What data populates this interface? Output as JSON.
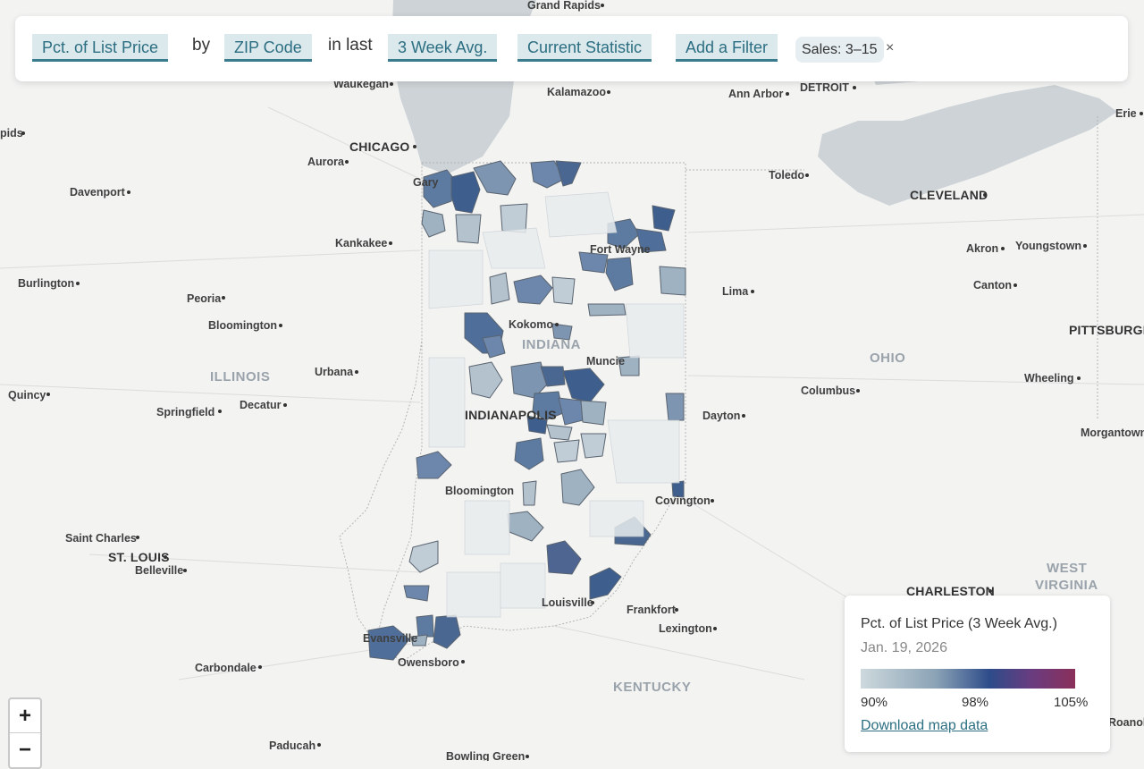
{
  "filter_bar": {
    "metric": "Pct. of List Price",
    "by_word": "by",
    "geography": "ZIP Code",
    "in_last_word": "in last",
    "period": "3 Week Avg.",
    "statistic": "Current Statistic",
    "add_filter": "Add a Filter",
    "active_filter": "Sales: 3–15",
    "remove_symbol": "×"
  },
  "map": {
    "cities": {
      "grand_rapids": "Grand Rapids",
      "waukegan": "Waukegan",
      "kalamazoo": "Kalamazoo",
      "ann_arbor": "Ann Arbor",
      "detroit": "DETROIT",
      "erie": "Erie",
      "rapids": "pids",
      "chicago": "CHICAGO",
      "aurora": "Aurora",
      "gary": "Gary",
      "toledo": "Toledo",
      "davenport": "Davenport",
      "cleveland": "CLEVELAND",
      "kankakee": "Kankakee",
      "fort_wayne": "Fort Wayne",
      "akron": "Akron",
      "youngstown": "Youngstown",
      "burlington": "Burlington",
      "peoria": "Peoria",
      "lima": "Lima",
      "canton": "Canton",
      "kokomo": "Kokomo",
      "bloomington_il": "Bloomington",
      "pittsburgh": "PITTSBURGH",
      "muncie": "Muncie",
      "urbana": "Urbana",
      "wheeling": "Wheeling",
      "quincy": "Quincy",
      "columbus": "Columbus",
      "springfield": "Springfield",
      "decatur": "Decatur",
      "indianapolis": "INDIANAPOLIS",
      "dayton": "Dayton",
      "morgantown": "Morgantown",
      "bloomington_in": "Bloomington",
      "covington": "Covington",
      "saint_charles": "Saint Charles",
      "st_louis": "ST. LOUIS",
      "belleville": "Belleville",
      "charleston": "CHARLESTON",
      "louisville": "Louisville",
      "frankfort": "Frankfort",
      "lexington": "Lexington",
      "evansville": "Evansville",
      "owensboro": "Owensboro",
      "carbondale": "Carbondale",
      "paducah": "Paducah",
      "bowling_green": "Bowling Green",
      "roanoke": "Roanok"
    },
    "regions": {
      "indiana": "INDIANA",
      "illinois": "ILLINOIS",
      "ohio": "OHIO",
      "kentucky": "KENTUCKY",
      "west": "WEST",
      "virginia": "VIRGINIA"
    },
    "colors": {
      "water": "#cdd3d6",
      "low": "#cdd9dd",
      "mid": "#2e4c8a",
      "high": "#8a2f5a"
    }
  },
  "zoom": {
    "in": "+",
    "out": "−"
  },
  "legend": {
    "title": "Pct. of List Price (3 Week Avg.)",
    "date": "Jan. 19, 2026",
    "min_label": "90%",
    "mid_label": "98%",
    "max_label": "105%",
    "download": "Download map data"
  }
}
